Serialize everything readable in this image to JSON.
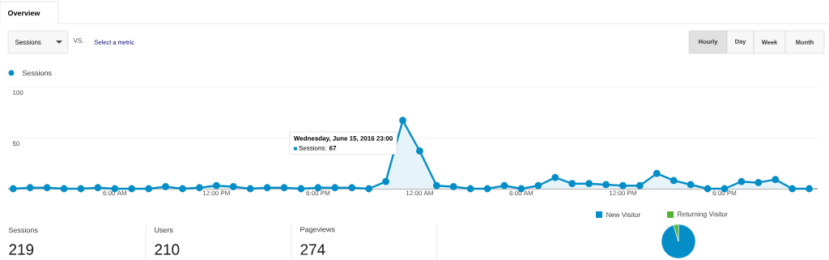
{
  "chart_data": [
    {
      "type": "area",
      "x": [
        "2016-06-15T00:00",
        "2016-06-15T01:00",
        "2016-06-15T02:00",
        "2016-06-15T03:00",
        "2016-06-15T04:00",
        "2016-06-15T05:00",
        "2016-06-15T06:00",
        "2016-06-15T07:00",
        "2016-06-15T08:00",
        "2016-06-15T09:00",
        "2016-06-15T10:00",
        "2016-06-15T11:00",
        "2016-06-15T12:00",
        "2016-06-15T13:00",
        "2016-06-15T14:00",
        "2016-06-15T15:00",
        "2016-06-15T16:00",
        "2016-06-15T17:00",
        "2016-06-15T18:00",
        "2016-06-15T19:00",
        "2016-06-15T20:00",
        "2016-06-15T21:00",
        "2016-06-15T22:00",
        "2016-06-15T23:00",
        "2016-06-16T00:00",
        "2016-06-16T01:00",
        "2016-06-16T02:00",
        "2016-06-16T03:00",
        "2016-06-16T04:00",
        "2016-06-16T05:00",
        "2016-06-16T06:00",
        "2016-06-16T07:00",
        "2016-06-16T08:00",
        "2016-06-16T09:00",
        "2016-06-16T10:00",
        "2016-06-16T11:00",
        "2016-06-16T12:00",
        "2016-06-16T13:00",
        "2016-06-16T14:00",
        "2016-06-16T15:00",
        "2016-06-16T16:00",
        "2016-06-16T17:00",
        "2016-06-16T18:00",
        "2016-06-16T19:00",
        "2016-06-16T20:00",
        "2016-06-16T21:00",
        "2016-06-16T22:00",
        "2016-06-16T23:00"
      ],
      "series": [
        {
          "name": "Sessions",
          "color": "#058dc7",
          "values": [
            0,
            1,
            1,
            0,
            0,
            1,
            0,
            0,
            0,
            2,
            0,
            1,
            3,
            2,
            0,
            1,
            1,
            0,
            1,
            1,
            1,
            0,
            7,
            67,
            37,
            3,
            2,
            0,
            0,
            3,
            0,
            3,
            11,
            5,
            5,
            4,
            3,
            3,
            15,
            8,
            4,
            0,
            0,
            7,
            6,
            9,
            0,
            0
          ]
        }
      ],
      "xlim": [
        "2016-06-14T23:42",
        "2016-06-16T23:30"
      ],
      "ylim": [
        0,
        100
      ],
      "xticks": [
        {
          "value": "2016-06-15T00:00",
          "label": "..."
        },
        {
          "value": "2016-06-15T06:00",
          "label": "6:00 AM"
        },
        {
          "value": "2016-06-15T12:00",
          "label": "12:00 PM"
        },
        {
          "value": "2016-06-15T18:00",
          "label": "6:00 PM"
        },
        {
          "value": "2016-06-16T00:00",
          "label": "12:00 AM"
        },
        {
          "value": "2016-06-16T06:00",
          "label": "6:00 AM"
        },
        {
          "value": "2016-06-16T12:00",
          "label": "12:00 PM"
        },
        {
          "value": "2016-06-16T18:00",
          "label": "6:00 PM"
        }
      ],
      "yticks": [
        50,
        100
      ],
      "grid": "y",
      "legend": "top left",
      "marker": "circle",
      "line_style": "solid",
      "annotations": [
        {
          "text": "Wednesday, June 15, 2016 23:00",
          "x": "2016-06-15T23:00",
          "y": 67
        },
        "Sessions: **67**",
        "Overview",
        "Sessions",
        "VS.",
        "Select a metric",
        "Hourly",
        "Day",
        "Week",
        "Month"
      ]
    },
    {
      "type": "other",
      "annotations": [
        "Sessions",
        "219",
        "Users",
        "210",
        "Pageviews",
        "274"
      ]
    },
    {
      "type": "pie",
      "categories": [
        "New Visitor",
        "Returning Visitor"
      ],
      "values": [
        95.5,
        4.5
      ],
      "colors": [
        "#058dc7",
        "#50b432"
      ],
      "legend": "top"
    }
  ]
}
